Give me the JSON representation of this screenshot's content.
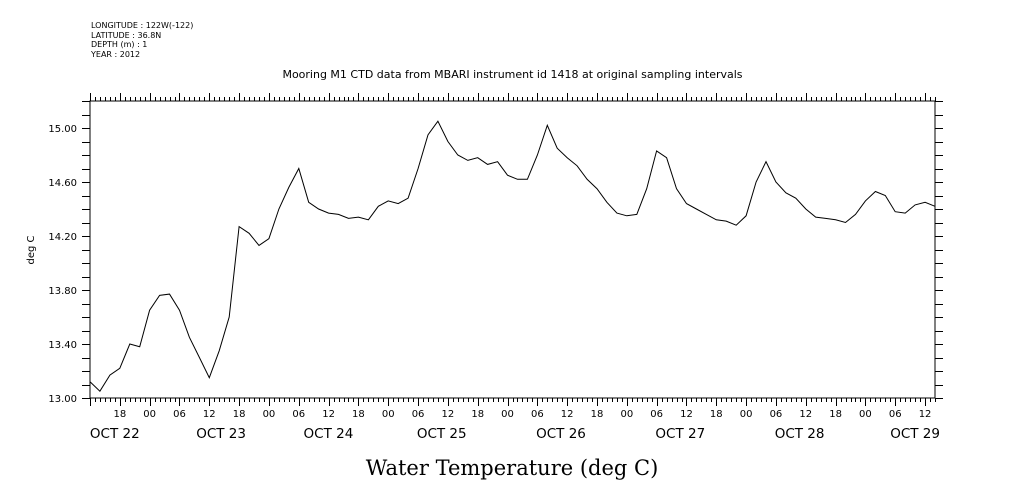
{
  "header": {
    "longitude": "LONGITUDE : 122W(-122)",
    "latitude": "LATITUDE : 36.8N",
    "depth": "DEPTH (m) : 1",
    "year": "YEAR : 2012"
  },
  "chart_data": {
    "type": "line",
    "title": "Mooring M1 CTD data from MBARI instrument id 1418 at original sampling intervals",
    "ylabel": "deg C",
    "xlabel": "Water Temperature (deg C)",
    "ylim": [
      13.0,
      15.2
    ],
    "yticks": [
      "13.00",
      "13.40",
      "13.80",
      "14.20",
      "14.60",
      "15.00"
    ],
    "ytick_values": [
      13.0,
      13.4,
      13.8,
      14.2,
      14.6,
      15.0
    ],
    "xlim": [
      "2012-10-22T12:00",
      "2012-10-29T14:00"
    ],
    "hour_ticks": [
      "18",
      "00",
      "06",
      "12",
      "18",
      "00",
      "06",
      "12",
      "18",
      "00",
      "06",
      "12",
      "18",
      "00",
      "06",
      "12",
      "18",
      "00",
      "06",
      "12",
      "18",
      "00",
      "06",
      "12",
      "18",
      "00",
      "06",
      "12"
    ],
    "day_labels": [
      "OCT 22",
      "OCT 23",
      "OCT 24",
      "OCT 25",
      "OCT 26",
      "OCT 27",
      "OCT 28",
      "OCT 29"
    ],
    "series": [
      {
        "x": [
          "2012-10-22T12:00",
          "2012-10-22T14:00",
          "2012-10-22T16:00",
          "2012-10-22T18:00",
          "2012-10-22T20:00",
          "2012-10-22T22:00",
          "2012-10-23T00:00",
          "2012-10-23T02:00",
          "2012-10-23T04:00",
          "2012-10-23T06:00",
          "2012-10-23T08:00",
          "2012-10-23T10:00",
          "2012-10-23T12:00",
          "2012-10-23T14:00",
          "2012-10-23T16:00",
          "2012-10-23T18:00",
          "2012-10-23T20:00",
          "2012-10-23T22:00",
          "2012-10-24T00:00",
          "2012-10-24T02:00",
          "2012-10-24T04:00",
          "2012-10-24T06:00",
          "2012-10-24T08:00",
          "2012-10-24T10:00",
          "2012-10-24T12:00",
          "2012-10-24T14:00",
          "2012-10-24T16:00",
          "2012-10-24T18:00",
          "2012-10-24T20:00",
          "2012-10-24T22:00",
          "2012-10-25T00:00",
          "2012-10-25T02:00",
          "2012-10-25T04:00",
          "2012-10-25T06:00",
          "2012-10-25T08:00",
          "2012-10-25T10:00",
          "2012-10-25T12:00",
          "2012-10-25T14:00",
          "2012-10-25T16:00",
          "2012-10-25T18:00",
          "2012-10-25T20:00",
          "2012-10-25T22:00",
          "2012-10-26T00:00",
          "2012-10-26T02:00",
          "2012-10-26T04:00",
          "2012-10-26T06:00",
          "2012-10-26T08:00",
          "2012-10-26T10:00",
          "2012-10-26T12:00",
          "2012-10-26T14:00",
          "2012-10-26T16:00",
          "2012-10-26T18:00",
          "2012-10-26T20:00",
          "2012-10-26T22:00",
          "2012-10-27T00:00",
          "2012-10-27T02:00",
          "2012-10-27T04:00",
          "2012-10-27T06:00",
          "2012-10-27T08:00",
          "2012-10-27T10:00",
          "2012-10-27T12:00",
          "2012-10-27T14:00",
          "2012-10-27T16:00",
          "2012-10-27T18:00",
          "2012-10-27T20:00",
          "2012-10-27T22:00",
          "2012-10-28T00:00",
          "2012-10-28T02:00",
          "2012-10-28T04:00",
          "2012-10-28T06:00",
          "2012-10-28T08:00",
          "2012-10-28T10:00",
          "2012-10-28T12:00",
          "2012-10-28T14:00",
          "2012-10-28T16:00",
          "2012-10-28T18:00",
          "2012-10-28T20:00",
          "2012-10-28T22:00",
          "2012-10-29T00:00",
          "2012-10-29T02:00",
          "2012-10-29T04:00",
          "2012-10-29T06:00",
          "2012-10-29T08:00",
          "2012-10-29T10:00",
          "2012-10-29T12:00",
          "2012-10-29T14:00"
        ],
        "y": [
          13.12,
          13.05,
          13.17,
          13.22,
          13.4,
          13.38,
          13.65,
          13.76,
          13.77,
          13.65,
          13.45,
          13.3,
          13.15,
          13.35,
          13.6,
          14.27,
          14.22,
          14.13,
          14.18,
          14.4,
          14.56,
          14.7,
          14.45,
          14.4,
          14.37,
          14.36,
          14.33,
          14.34,
          14.32,
          14.42,
          14.46,
          14.44,
          14.48,
          14.7,
          14.95,
          15.05,
          14.9,
          14.8,
          14.76,
          14.78,
          14.73,
          14.75,
          14.65,
          14.62,
          14.62,
          14.8,
          15.02,
          14.85,
          14.78,
          14.72,
          14.62,
          14.55,
          14.45,
          14.37,
          14.35,
          14.36,
          14.55,
          14.83,
          14.78,
          14.55,
          14.44,
          14.4,
          14.36,
          14.32,
          14.31,
          14.28,
          14.35,
          14.6,
          14.75,
          14.6,
          14.52,
          14.48,
          14.4,
          14.34,
          14.33,
          14.32,
          14.3,
          14.36,
          14.46,
          14.53,
          14.5,
          14.38,
          14.37,
          14.43,
          14.45,
          14.42
        ]
      }
    ]
  }
}
